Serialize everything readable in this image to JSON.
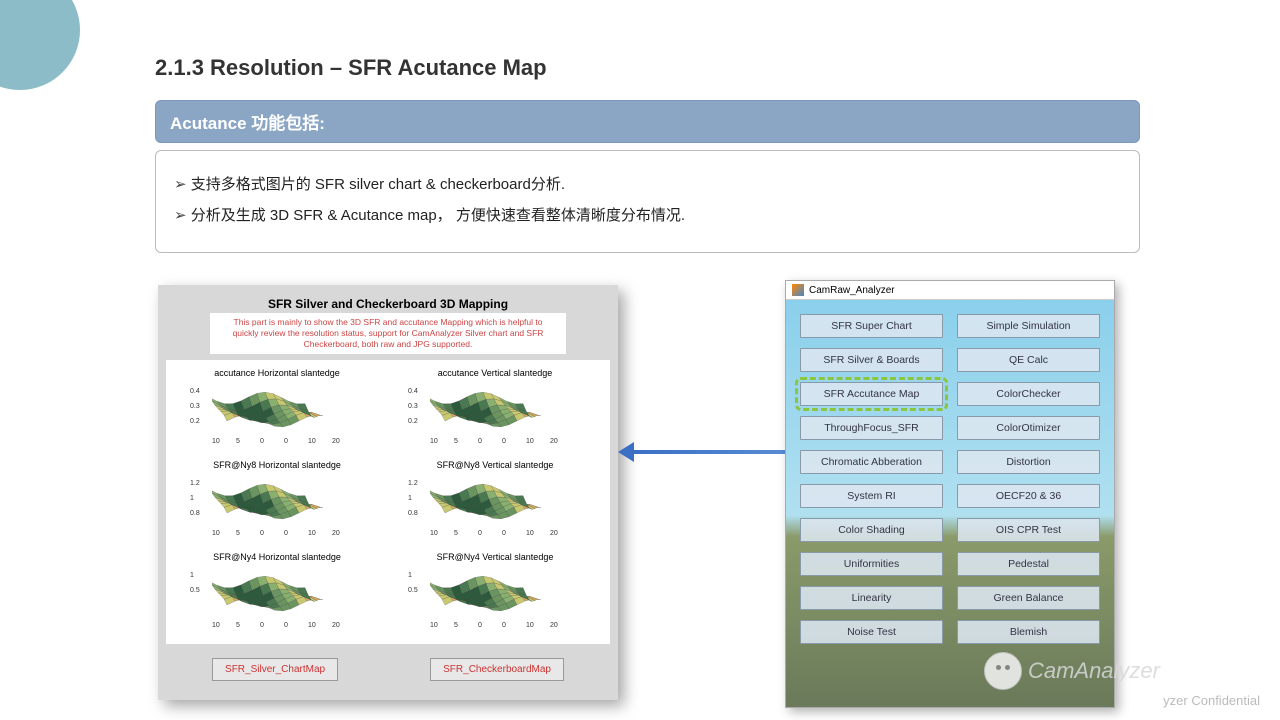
{
  "page": {
    "title": "2.1.3  Resolution –  SFR Acutance Map",
    "section_header": "Acutance 功能包括:",
    "bullets": [
      "支持多格式图片的 SFR silver chart  &  checkerboard分析.",
      "分析及生成 3D SFR & Acutance map，  方便快速查看整体清晰度分布情况."
    ]
  },
  "mapping_panel": {
    "title": "SFR Silver and Checkerboard 3D Mapping",
    "description": "This part is mainly to show the 3D SFR and accutance Mapping which is helpful to quickly review the resolution status, support for CamAnalyzer Silver chart and SFR Checkerboard, both raw and JPG supported.",
    "charts": [
      {
        "title": "accutance Horizontal slantedge",
        "yticks": [
          "0.4",
          "0.3",
          "0.2"
        ],
        "xticks": [
          "10",
          "5",
          "0",
          "0",
          "10",
          "20"
        ]
      },
      {
        "title": "accutance Vertical slantedge",
        "yticks": [
          "0.4",
          "0.3",
          "0.2"
        ],
        "xticks": [
          "10",
          "5",
          "0",
          "0",
          "10",
          "20"
        ]
      },
      {
        "title": "SFR@Ny8 Horizontal slantedge",
        "yticks": [
          "1.2",
          "1",
          "0.8"
        ],
        "xticks": [
          "10",
          "5",
          "0",
          "0",
          "10",
          "20"
        ]
      },
      {
        "title": "SFR@Ny8 Vertical slantedge",
        "yticks": [
          "1.2",
          "1",
          "0.8"
        ],
        "xticks": [
          "10",
          "5",
          "0",
          "0",
          "10",
          "20"
        ]
      },
      {
        "title": "SFR@Ny4 Horizontal slantedge",
        "yticks": [
          "1",
          "0.5"
        ],
        "xticks": [
          "10",
          "5",
          "0",
          "0",
          "10",
          "20"
        ]
      },
      {
        "title": "SFR@Ny4 Vertical slantedge",
        "yticks": [
          "1",
          "0.5"
        ],
        "xticks": [
          "10",
          "5",
          "0",
          "0",
          "10",
          "20"
        ]
      }
    ],
    "buttons": [
      "SFR_Silver_ChartMap",
      "SFR_CheckerboardMap"
    ],
    "surface_colors": [
      "#2d5a3d",
      "#4a7850",
      "#6b9560",
      "#8ab070",
      "#c8c870",
      "#d4a860"
    ]
  },
  "app_window": {
    "title": "CamRaw_Analyzer",
    "buttons_left": [
      "SFR Super Chart",
      "SFR Silver & Boards",
      "SFR Accutance Map",
      "ThroughFocus_SFR",
      "Chromatic Abberation",
      "System RI",
      "Color Shading",
      "Uniformities",
      "Linearity",
      "Noise Test"
    ],
    "buttons_right": [
      "Simple Simulation",
      "QE Calc",
      "ColorChecker",
      "ColorOtimizer",
      "Distortion",
      "OECF20 & 36",
      "OIS CPR Test",
      "Pedestal",
      "Green Balance",
      "Blemish"
    ],
    "highlighted_index": 2
  },
  "watermark": {
    "brand": "CamAnalyzer",
    "confidential": "yzer Confidential"
  },
  "colors": {
    "header_bg": "#8ba6c4",
    "accent_circle": "#5a9fb0",
    "panel_bg": "#d8d8d8",
    "btn_text_red": "#c33",
    "highlight_green": "#8cc63f",
    "arrow_blue": "#3a6fc4"
  }
}
